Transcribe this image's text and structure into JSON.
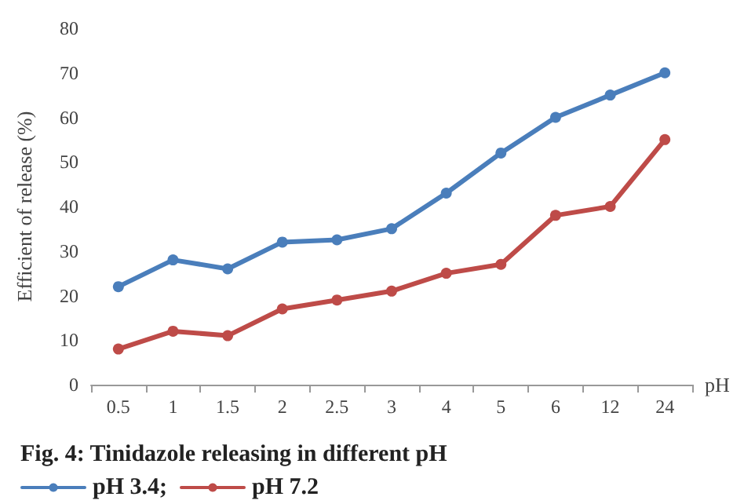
{
  "chart_data": {
    "type": "line",
    "title": "Fig. 4: Tinidazole releasing in different pH",
    "xlabel": "pH",
    "ylabel": "Efficient of release (%)",
    "categories": [
      "0.5",
      "1",
      "1.5",
      "2",
      "2.5",
      "3",
      "4",
      "5",
      "6",
      "12",
      "24"
    ],
    "series": [
      {
        "name": "pH 3.4;",
        "color": "#4a7ebb",
        "values": [
          22,
          28,
          26,
          32,
          32.5,
          35,
          43,
          52,
          60,
          65,
          70
        ]
      },
      {
        "name": "pH 7.2",
        "color": "#be4b48",
        "values": [
          8,
          12,
          11,
          17,
          19,
          21,
          25,
          27,
          38,
          40,
          55
        ]
      }
    ],
    "ylim": [
      0,
      80
    ],
    "yticks": [
      0,
      10,
      20,
      30,
      40,
      50,
      60,
      70,
      80
    ],
    "grid": false,
    "legend": "bottom left",
    "marker": "circle",
    "line_style": "solid"
  }
}
